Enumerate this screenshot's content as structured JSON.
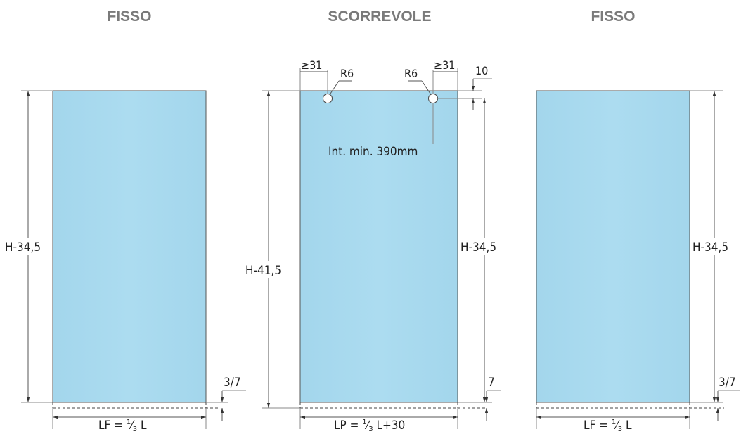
{
  "panels": {
    "left": {
      "title": "FISSO",
      "height_label": "H-34,5",
      "gap_label": "3/7",
      "width_prefix": "LF = ",
      "width_frac_num": "1",
      "width_frac_den": "3",
      "width_suffix": " L"
    },
    "center": {
      "title": "SCORREVOLE",
      "height_label": "H-41,5",
      "right_height_label": "H-34,5",
      "gap_label": "7",
      "top_offset_label": "10",
      "edge_left_label": "≥31",
      "edge_right_label": "≥31",
      "radius_left_label": "R6",
      "radius_right_label": "R6",
      "interaxis_label": "Int. min. 390mm",
      "width_prefix": "LP = ",
      "width_frac_num": "1",
      "width_frac_den": "3",
      "width_suffix": " L+30"
    },
    "right": {
      "title": "FISSO",
      "height_label": "H-34,5",
      "gap_label": "3/7",
      "width_prefix": "LF = ",
      "width_frac_num": "1",
      "width_frac_den": "3",
      "width_suffix": " L"
    }
  },
  "colors": {
    "glass": "#a7d9ee",
    "title": "#7a7a7a"
  }
}
